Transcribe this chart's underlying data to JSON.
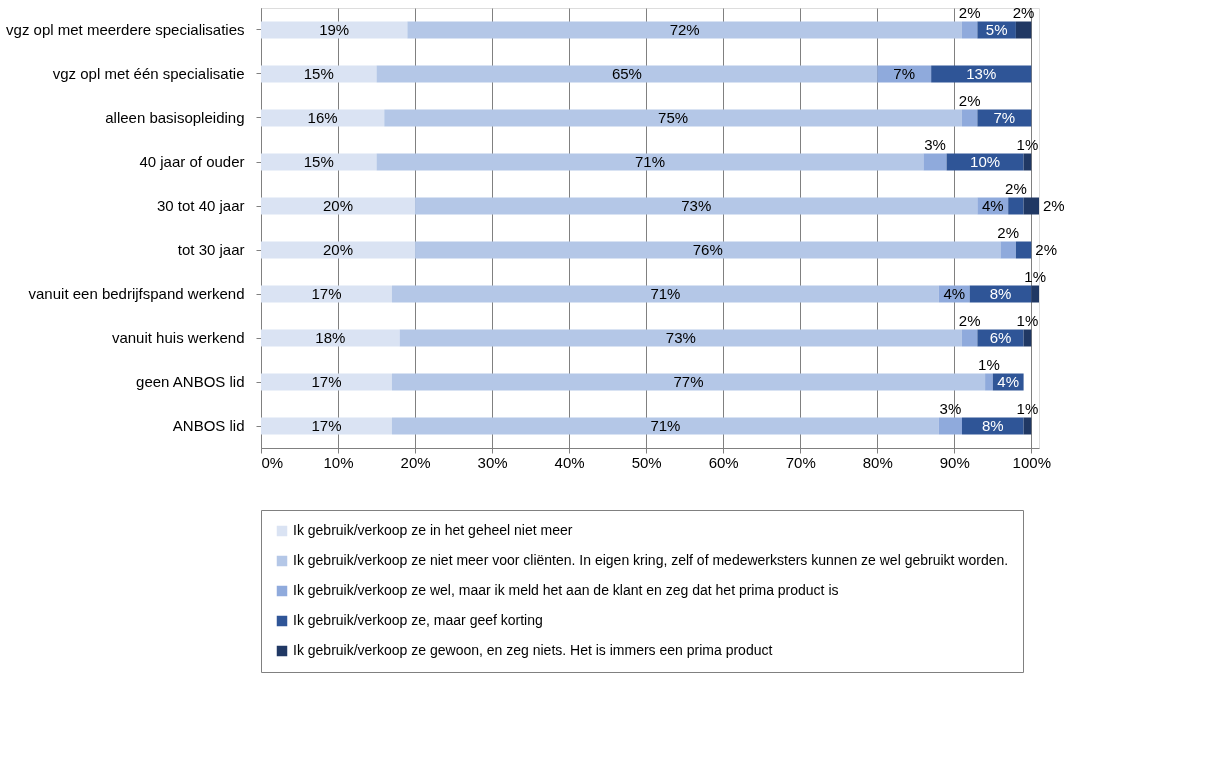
{
  "chart_data": {
    "type": "bar",
    "orientation": "horizontal",
    "stacked": true,
    "grid": "x",
    "legend": "bottom",
    "categories": [
      "vgz opl met meerdere specialisaties",
      "vgz opl met één specialisatie",
      "alleen basisopleiding",
      "40 jaar of ouder",
      "30 tot 40 jaar",
      "tot 30 jaar",
      "vanuit een bedrijfspand werkend",
      "vanuit huis werkend",
      "geen ANBOS lid",
      "ANBOS lid"
    ],
    "xlim": [
      0,
      101
    ],
    "xticks": [
      {
        "value": 0,
        "label": "0%"
      },
      {
        "value": 10,
        "label": "10%"
      },
      {
        "value": 20,
        "label": "20%"
      },
      {
        "value": 30,
        "label": "30%"
      },
      {
        "value": 40,
        "label": "40%"
      },
      {
        "value": 50,
        "label": "50%"
      },
      {
        "value": 60,
        "label": "60%"
      },
      {
        "value": 70,
        "label": "70%"
      },
      {
        "value": 80,
        "label": "80%"
      },
      {
        "value": 90,
        "label": "90%"
      },
      {
        "value": 100,
        "label": "100%"
      }
    ],
    "series": [
      {
        "name": "Ik gebruik/verkoop ze in het geheel niet meer",
        "color": "#dae3f3",
        "values": [
          19,
          15,
          16,
          15,
          20,
          20,
          17,
          18,
          17,
          17
        ],
        "value_labels": [
          "19%",
          "15%",
          "16%",
          "15%",
          "20%",
          "20%",
          "17%",
          "18%",
          "17%",
          "17%"
        ]
      },
      {
        "name": "Ik gebruik/verkoop ze niet meer voor cliënten. In eigen kring, zelf of medewerksters kunnen ze wel gebruikt worden.",
        "color": "#b4c7e7",
        "values": [
          72,
          65,
          75,
          71,
          73,
          76,
          71,
          73,
          77,
          71
        ],
        "value_labels": [
          "72%",
          "65%",
          "75%",
          "71%",
          "73%",
          "76%",
          "71%",
          "73%",
          "77%",
          "71%"
        ]
      },
      {
        "name": "Ik gebruik/verkoop ze wel, maar ik meld het aan de klant en zeg dat het prima product is",
        "color": "#8faadc",
        "values": [
          2,
          7,
          2,
          3,
          4,
          2,
          4,
          2,
          1,
          3
        ],
        "value_labels": [
          "2%",
          "7%",
          "2%",
          "3%",
          "4%",
          "2%",
          "4%",
          "2%",
          "1%",
          "3%"
        ]
      },
      {
        "name": "Ik gebruik/verkoop ze, maar geef korting",
        "color": "#2f5597",
        "values": [
          5,
          13,
          7,
          10,
          2,
          2,
          8,
          6,
          4,
          8
        ],
        "value_labels": [
          "5%",
          "13%",
          "7%",
          "10%",
          "2%",
          "2%",
          "8%",
          "6%",
          "4%",
          "8%"
        ]
      },
      {
        "name": "Ik gebruik/verkoop ze gewoon, en zeg niets. Het is immers een prima product",
        "color": "#203864",
        "values": [
          2,
          null,
          null,
          1,
          2,
          null,
          1,
          1,
          null,
          1
        ],
        "value_labels": [
          "2%",
          null,
          null,
          "1%",
          "2%",
          null,
          "1%",
          "1%",
          null,
          "1%"
        ]
      }
    ]
  }
}
